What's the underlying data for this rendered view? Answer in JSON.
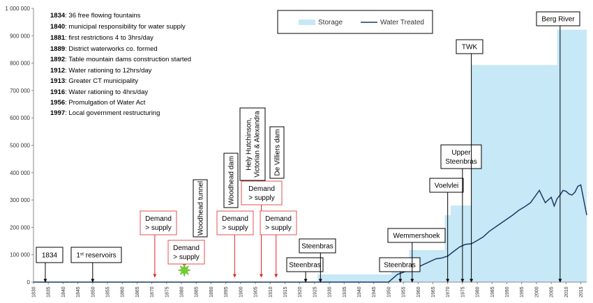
{
  "chart_data": {
    "type": "area",
    "title": "",
    "xlabel": "",
    "ylabel": "",
    "xlim": [
      1830,
      2017
    ],
    "ylim": [
      0,
      1000000
    ],
    "y_ticks": [
      0,
      100000,
      200000,
      300000,
      400000,
      500000,
      600000,
      700000,
      800000,
      900000,
      1000000
    ],
    "y_tick_labels": [
      "0",
      "100 000",
      "200 000",
      "300 000",
      "400 000",
      "500 000",
      "600 000",
      "700 000",
      "800 000",
      "900 000",
      "1 000 000"
    ],
    "x_ticks": [
      1830,
      1835,
      1840,
      1845,
      1850,
      1855,
      1860,
      1865,
      1870,
      1875,
      1880,
      1885,
      1890,
      1895,
      1900,
      1905,
      1910,
      1915,
      1920,
      1925,
      1930,
      1935,
      1940,
      1945,
      1950,
      1955,
      1960,
      1965,
      1970,
      1975,
      1980,
      1985,
      1990,
      1995,
      2000,
      2005,
      2010,
      2015
    ],
    "grid": false,
    "legend": {
      "placement": "top-center",
      "entries": [
        "Storage",
        "Water Treated"
      ]
    },
    "colors": {
      "storage": "#c6e8f7",
      "water_treated": "#1f3864",
      "arrow_red": "#e0262a",
      "arrow_black": "#000000",
      "box_red": "#e05050"
    },
    "series": [
      {
        "name": "Storage",
        "type": "step-area",
        "x": [
          1830,
          1926,
          1926,
          1951,
          1951,
          1957,
          1957,
          1969,
          1969,
          1971,
          1971,
          1978,
          1978,
          2007,
          2007,
          2017
        ],
        "values": [
          0,
          0,
          28000,
          28000,
          83000,
          83000,
          117000,
          117000,
          245000,
          245000,
          280000,
          280000,
          793000,
          793000,
          922000,
          922000
        ]
      },
      {
        "name": "Water Treated",
        "type": "line",
        "x": [
          1830,
          1950,
          1953,
          1956,
          1960,
          1963,
          1966,
          1968,
          1970,
          1972,
          1974,
          1976,
          1978,
          1980,
          1982,
          1984,
          1986,
          1988,
          1990,
          1992,
          1994,
          1996,
          1998,
          2000,
          2001,
          2002,
          2003,
          2004,
          2005,
          2006,
          2007,
          2008,
          2009,
          2010,
          2011,
          2012,
          2013,
          2014,
          2015,
          2017
        ],
        "values": [
          0,
          0,
          28000,
          40000,
          55000,
          70000,
          85000,
          88000,
          95000,
          112000,
          128000,
          138000,
          140000,
          152000,
          165000,
          185000,
          200000,
          215000,
          230000,
          245000,
          262000,
          275000,
          290000,
          320000,
          335000,
          312000,
          290000,
          300000,
          310000,
          278000,
          305000,
          318000,
          335000,
          332000,
          322000,
          318000,
          328000,
          350000,
          355000,
          245000
        ]
      }
    ],
    "history_notes": [
      {
        "year": "1834",
        "text": "36 free flowing fountains"
      },
      {
        "year": "1840",
        "text": "municipal responsibility for water supply"
      },
      {
        "year": "1881",
        "text": "first restrictions 4 to 3hrs/day"
      },
      {
        "year": "1889",
        "text": "District waterworks co. formed"
      },
      {
        "year": "1892",
        "text": "Table mountain dams construction started"
      },
      {
        "year": "1912",
        "text": "Water rationing to 12hrs/day"
      },
      {
        "year": "1913",
        "text": "Greater CT municipality"
      },
      {
        "year": "1916",
        "text": "Water rationing to 4hrs/day"
      },
      {
        "year": "1956",
        "text": "Promulgation of Water Act"
      },
      {
        "year": "1997",
        "text": "Local government restructuring"
      }
    ],
    "annotations": [
      {
        "lines": [
          "1834"
        ],
        "x": 1834,
        "kind": "black"
      },
      {
        "lines": [
          "1st reservoirs"
        ],
        "x": 1850,
        "kind": "black"
      },
      {
        "lines": [
          "Demand",
          "> supply"
        ],
        "x": 1871,
        "kind": "red"
      },
      {
        "lines": [
          "Demand",
          "> supply"
        ],
        "x": 1881,
        "kind": "red-burst"
      },
      {
        "lines": [
          "Woodhead tunnel"
        ],
        "x": 1881,
        "kind": "vertical"
      },
      {
        "lines": [
          "Demand",
          "> supply"
        ],
        "x": 1898,
        "kind": "red"
      },
      {
        "lines": [
          "Woodhead dam"
        ],
        "x": 1898,
        "kind": "vertical"
      },
      {
        "lines": [
          "Demand",
          "> supply"
        ],
        "x": 1907,
        "kind": "red"
      },
      {
        "lines": [
          "Hely Hutchinson,",
          "Victorian & Alexandra"
        ],
        "x": 1905,
        "kind": "vertical"
      },
      {
        "lines": [
          "Demand",
          "> supply"
        ],
        "x": 1912,
        "kind": "red"
      },
      {
        "lines": [
          "De Villiers dam"
        ],
        "x": 1910,
        "kind": "vertical"
      },
      {
        "lines": [
          "Steenbras"
        ],
        "x": 1922,
        "kind": "black"
      },
      {
        "lines": [
          "Steenbras"
        ],
        "x": 1927,
        "kind": "black"
      },
      {
        "lines": [
          "Steenbras"
        ],
        "x": 1954,
        "kind": "black"
      },
      {
        "lines": [
          "Wemmershoek"
        ],
        "x": 1958,
        "kind": "black"
      },
      {
        "lines": [
          "Voelvlei"
        ],
        "x": 1970,
        "kind": "black"
      },
      {
        "lines": [
          "Upper",
          "Steenbras"
        ],
        "x": 1975,
        "kind": "black"
      },
      {
        "lines": [
          "TWK"
        ],
        "x": 1978,
        "kind": "black"
      },
      {
        "lines": [
          "Berg River"
        ],
        "x": 2008,
        "kind": "black"
      }
    ]
  }
}
